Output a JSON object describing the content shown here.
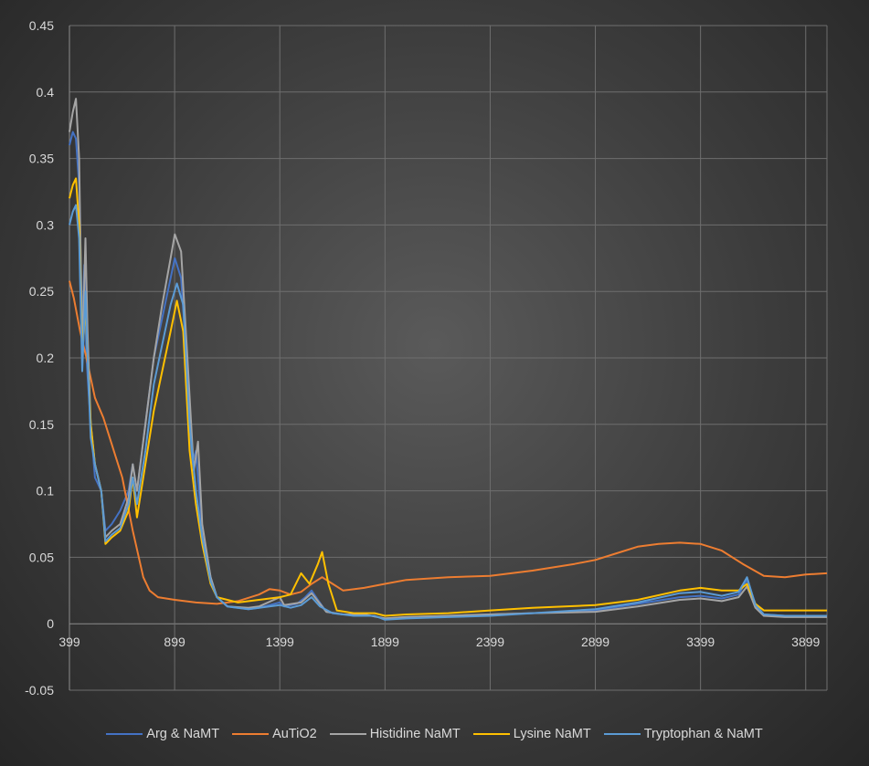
{
  "chart_data": {
    "type": "line",
    "title": "",
    "xlabel": "",
    "ylabel": "",
    "xlim": [
      399,
      4000
    ],
    "ylim": [
      -0.05,
      0.45
    ],
    "x_ticks": [
      "399",
      "899",
      "1399",
      "1899",
      "2399",
      "2899",
      "3399",
      "3899"
    ],
    "y_ticks": [
      "-0.05",
      "0",
      "0.05",
      "0.1",
      "0.15",
      "0.2",
      "0.25",
      "0.3",
      "0.35",
      "0.4",
      "0.45"
    ],
    "grid": true,
    "legend_position": "bottom",
    "series": [
      {
        "name": "Arg & NaMT",
        "color": "#4472c4",
        "points": [
          [
            399,
            0.36
          ],
          [
            415,
            0.37
          ],
          [
            430,
            0.365
          ],
          [
            445,
            0.33
          ],
          [
            460,
            0.22
          ],
          [
            470,
            0.27
          ],
          [
            480,
            0.2
          ],
          [
            500,
            0.15
          ],
          [
            520,
            0.11
          ],
          [
            550,
            0.1
          ],
          [
            570,
            0.07
          ],
          [
            600,
            0.075
          ],
          [
            640,
            0.085
          ],
          [
            680,
            0.1
          ],
          [
            700,
            0.12
          ],
          [
            720,
            0.1
          ],
          [
            760,
            0.15
          ],
          [
            800,
            0.2
          ],
          [
            840,
            0.23
          ],
          [
            880,
            0.26
          ],
          [
            900,
            0.275
          ],
          [
            930,
            0.26
          ],
          [
            960,
            0.19
          ],
          [
            980,
            0.12
          ],
          [
            1000,
            0.13
          ],
          [
            1030,
            0.07
          ],
          [
            1070,
            0.035
          ],
          [
            1100,
            0.02
          ],
          [
            1150,
            0.013
          ],
          [
            1250,
            0.011
          ],
          [
            1300,
            0.012
          ],
          [
            1399,
            0.016
          ],
          [
            1420,
            0.013
          ],
          [
            1480,
            0.015
          ],
          [
            1520,
            0.02
          ],
          [
            1550,
            0.025
          ],
          [
            1580,
            0.018
          ],
          [
            1620,
            0.009
          ],
          [
            1700,
            0.007
          ],
          [
            1800,
            0.007
          ],
          [
            1899,
            0.004
          ],
          [
            2000,
            0.005
          ],
          [
            2200,
            0.006
          ],
          [
            2400,
            0.007
          ],
          [
            2600,
            0.008
          ],
          [
            2899,
            0.01
          ],
          [
            3100,
            0.015
          ],
          [
            3300,
            0.02
          ],
          [
            3399,
            0.021
          ],
          [
            3500,
            0.019
          ],
          [
            3580,
            0.022
          ],
          [
            3620,
            0.033
          ],
          [
            3660,
            0.015
          ],
          [
            3700,
            0.007
          ],
          [
            3800,
            0.006
          ],
          [
            3899,
            0.006
          ],
          [
            4000,
            0.006
          ]
        ]
      },
      {
        "name": "AuTiO2",
        "color": "#ed7d31",
        "points": [
          [
            399,
            0.258
          ],
          [
            420,
            0.245
          ],
          [
            450,
            0.22
          ],
          [
            480,
            0.2
          ],
          [
            520,
            0.17
          ],
          [
            560,
            0.155
          ],
          [
            600,
            0.135
          ],
          [
            650,
            0.11
          ],
          [
            700,
            0.07
          ],
          [
            750,
            0.035
          ],
          [
            780,
            0.025
          ],
          [
            820,
            0.02
          ],
          [
            900,
            0.018
          ],
          [
            1000,
            0.016
          ],
          [
            1100,
            0.015
          ],
          [
            1200,
            0.017
          ],
          [
            1300,
            0.022
          ],
          [
            1350,
            0.026
          ],
          [
            1399,
            0.025
          ],
          [
            1450,
            0.022
          ],
          [
            1500,
            0.024
          ],
          [
            1550,
            0.03
          ],
          [
            1600,
            0.035
          ],
          [
            1650,
            0.03
          ],
          [
            1700,
            0.025
          ],
          [
            1800,
            0.027
          ],
          [
            1899,
            0.03
          ],
          [
            2000,
            0.033
          ],
          [
            2200,
            0.035
          ],
          [
            2399,
            0.036
          ],
          [
            2600,
            0.04
          ],
          [
            2800,
            0.045
          ],
          [
            2899,
            0.048
          ],
          [
            3000,
            0.053
          ],
          [
            3100,
            0.058
          ],
          [
            3200,
            0.06
          ],
          [
            3300,
            0.061
          ],
          [
            3399,
            0.06
          ],
          [
            3500,
            0.055
          ],
          [
            3600,
            0.045
          ],
          [
            3700,
            0.036
          ],
          [
            3800,
            0.035
          ],
          [
            3899,
            0.037
          ],
          [
            4000,
            0.038
          ]
        ]
      },
      {
        "name": "Histidine NaMT",
        "color": "#a5a5a5",
        "points": [
          [
            399,
            0.37
          ],
          [
            415,
            0.385
          ],
          [
            430,
            0.395
          ],
          [
            445,
            0.35
          ],
          [
            460,
            0.2
          ],
          [
            475,
            0.29
          ],
          [
            485,
            0.22
          ],
          [
            500,
            0.15
          ],
          [
            520,
            0.12
          ],
          [
            550,
            0.1
          ],
          [
            570,
            0.065
          ],
          [
            600,
            0.07
          ],
          [
            640,
            0.075
          ],
          [
            680,
            0.095
          ],
          [
            700,
            0.12
          ],
          [
            720,
            0.1
          ],
          [
            760,
            0.15
          ],
          [
            800,
            0.2
          ],
          [
            840,
            0.24
          ],
          [
            880,
            0.275
          ],
          [
            900,
            0.293
          ],
          [
            930,
            0.28
          ],
          [
            960,
            0.2
          ],
          [
            990,
            0.115
          ],
          [
            1010,
            0.137
          ],
          [
            1030,
            0.075
          ],
          [
            1070,
            0.035
          ],
          [
            1100,
            0.02
          ],
          [
            1150,
            0.013
          ],
          [
            1250,
            0.012
          ],
          [
            1300,
            0.013
          ],
          [
            1399,
            0.02
          ],
          [
            1420,
            0.014
          ],
          [
            1500,
            0.016
          ],
          [
            1550,
            0.023
          ],
          [
            1590,
            0.015
          ],
          [
            1620,
            0.009
          ],
          [
            1700,
            0.007
          ],
          [
            1800,
            0.007
          ],
          [
            1899,
            0.004
          ],
          [
            2000,
            0.005
          ],
          [
            2200,
            0.006
          ],
          [
            2400,
            0.007
          ],
          [
            2600,
            0.008
          ],
          [
            2899,
            0.009
          ],
          [
            3100,
            0.013
          ],
          [
            3300,
            0.018
          ],
          [
            3399,
            0.019
          ],
          [
            3500,
            0.017
          ],
          [
            3580,
            0.02
          ],
          [
            3620,
            0.028
          ],
          [
            3660,
            0.012
          ],
          [
            3700,
            0.006
          ],
          [
            3800,
            0.005
          ],
          [
            3899,
            0.005
          ],
          [
            4000,
            0.005
          ]
        ]
      },
      {
        "name": "Lysine NaMT",
        "color": "#ffc000",
        "points": [
          [
            399,
            0.32
          ],
          [
            415,
            0.33
          ],
          [
            430,
            0.335
          ],
          [
            445,
            0.3
          ],
          [
            460,
            0.2
          ],
          [
            475,
            0.24
          ],
          [
            485,
            0.2
          ],
          [
            500,
            0.15
          ],
          [
            520,
            0.12
          ],
          [
            550,
            0.1
          ],
          [
            570,
            0.06
          ],
          [
            600,
            0.065
          ],
          [
            640,
            0.07
          ],
          [
            680,
            0.085
          ],
          [
            700,
            0.11
          ],
          [
            720,
            0.08
          ],
          [
            760,
            0.12
          ],
          [
            800,
            0.16
          ],
          [
            840,
            0.19
          ],
          [
            880,
            0.22
          ],
          [
            910,
            0.243
          ],
          [
            940,
            0.22
          ],
          [
            970,
            0.13
          ],
          [
            1000,
            0.09
          ],
          [
            1030,
            0.06
          ],
          [
            1070,
            0.03
          ],
          [
            1100,
            0.02
          ],
          [
            1200,
            0.016
          ],
          [
            1300,
            0.018
          ],
          [
            1399,
            0.02
          ],
          [
            1450,
            0.022
          ],
          [
            1500,
            0.038
          ],
          [
            1540,
            0.03
          ],
          [
            1580,
            0.045
          ],
          [
            1600,
            0.054
          ],
          [
            1630,
            0.03
          ],
          [
            1670,
            0.01
          ],
          [
            1750,
            0.008
          ],
          [
            1850,
            0.008
          ],
          [
            1899,
            0.006
          ],
          [
            2000,
            0.007
          ],
          [
            2200,
            0.008
          ],
          [
            2399,
            0.01
          ],
          [
            2600,
            0.012
          ],
          [
            2899,
            0.014
          ],
          [
            3100,
            0.018
          ],
          [
            3300,
            0.025
          ],
          [
            3399,
            0.027
          ],
          [
            3500,
            0.025
          ],
          [
            3580,
            0.025
          ],
          [
            3620,
            0.03
          ],
          [
            3660,
            0.015
          ],
          [
            3700,
            0.01
          ],
          [
            3800,
            0.01
          ],
          [
            3899,
            0.01
          ],
          [
            4000,
            0.01
          ]
        ]
      },
      {
        "name": "Tryptophan & NaMT",
        "color": "#5b9bd5",
        "points": [
          [
            399,
            0.3
          ],
          [
            415,
            0.31
          ],
          [
            430,
            0.315
          ],
          [
            445,
            0.29
          ],
          [
            460,
            0.19
          ],
          [
            475,
            0.25
          ],
          [
            485,
            0.2
          ],
          [
            500,
            0.14
          ],
          [
            520,
            0.12
          ],
          [
            550,
            0.1
          ],
          [
            570,
            0.062
          ],
          [
            600,
            0.067
          ],
          [
            640,
            0.072
          ],
          [
            680,
            0.09
          ],
          [
            700,
            0.11
          ],
          [
            720,
            0.09
          ],
          [
            760,
            0.13
          ],
          [
            800,
            0.18
          ],
          [
            840,
            0.21
          ],
          [
            880,
            0.24
          ],
          [
            910,
            0.256
          ],
          [
            940,
            0.24
          ],
          [
            970,
            0.15
          ],
          [
            1000,
            0.1
          ],
          [
            1030,
            0.065
          ],
          [
            1070,
            0.032
          ],
          [
            1100,
            0.02
          ],
          [
            1150,
            0.013
          ],
          [
            1250,
            0.011
          ],
          [
            1300,
            0.012
          ],
          [
            1399,
            0.014
          ],
          [
            1450,
            0.012
          ],
          [
            1500,
            0.014
          ],
          [
            1550,
            0.02
          ],
          [
            1590,
            0.013
          ],
          [
            1650,
            0.008
          ],
          [
            1750,
            0.006
          ],
          [
            1850,
            0.006
          ],
          [
            1899,
            0.003
          ],
          [
            2000,
            0.004
          ],
          [
            2200,
            0.005
          ],
          [
            2399,
            0.006
          ],
          [
            2600,
            0.008
          ],
          [
            2899,
            0.011
          ],
          [
            3100,
            0.016
          ],
          [
            3300,
            0.023
          ],
          [
            3399,
            0.024
          ],
          [
            3500,
            0.021
          ],
          [
            3580,
            0.024
          ],
          [
            3620,
            0.035
          ],
          [
            3660,
            0.014
          ],
          [
            3700,
            0.007
          ],
          [
            3800,
            0.006
          ],
          [
            3899,
            0.006
          ],
          [
            4000,
            0.006
          ]
        ]
      }
    ]
  }
}
